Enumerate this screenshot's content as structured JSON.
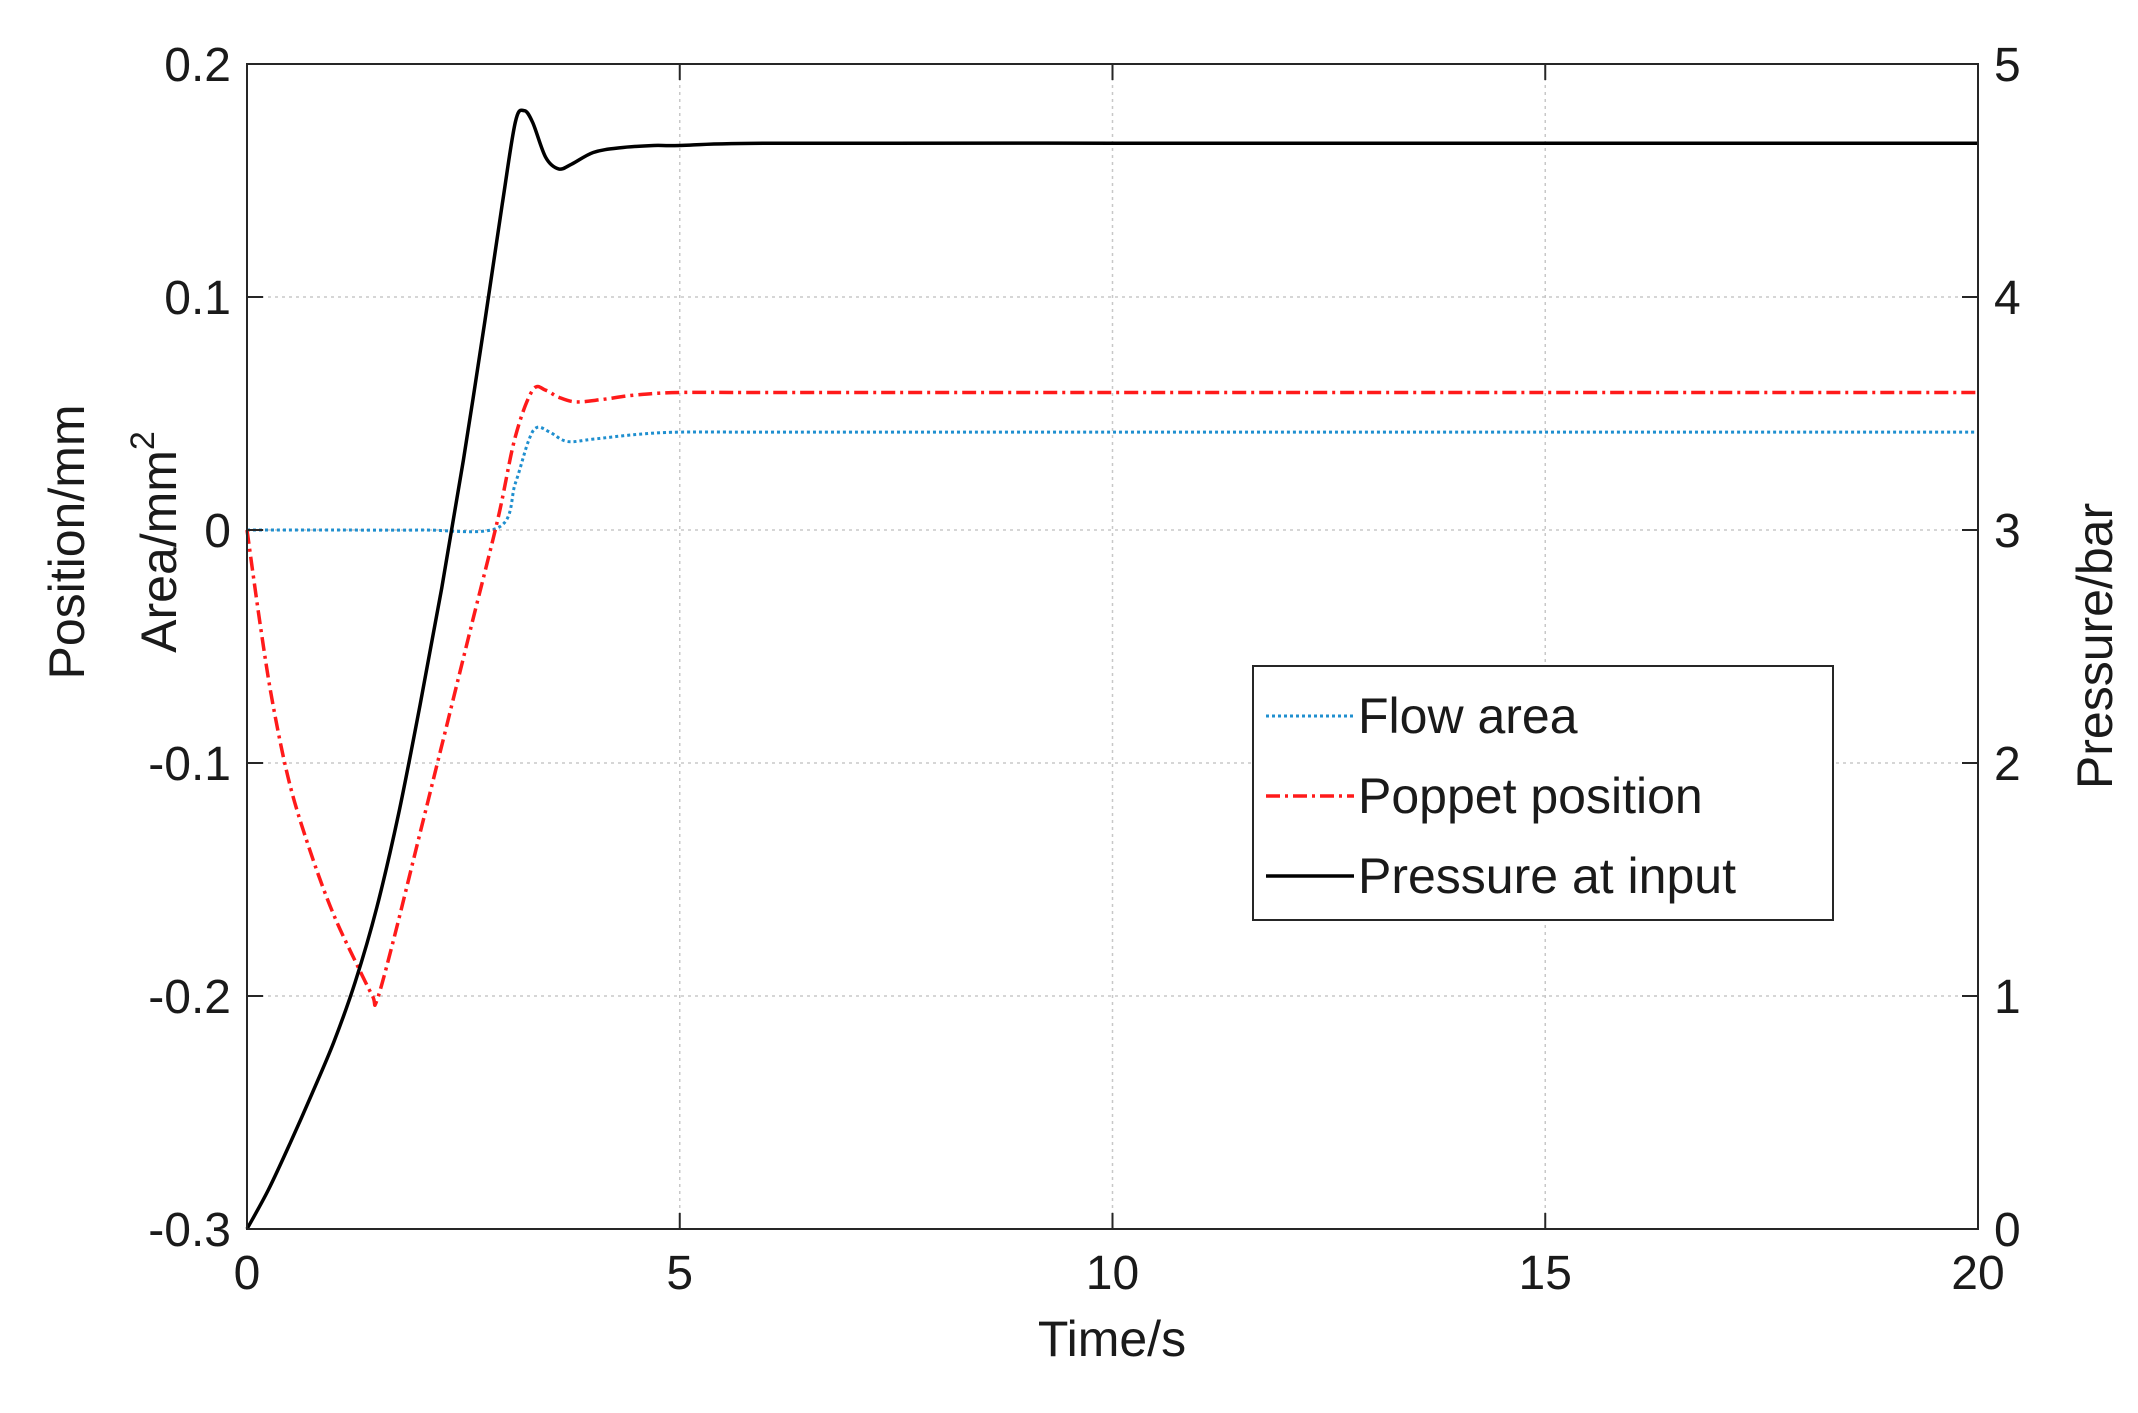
{
  "chart_data": {
    "type": "line",
    "title": "",
    "xlabel": "Time/s",
    "ylabel_left": [
      "Position/mm",
      "Area/mm",
      "2"
    ],
    "ylabel_right": "Pressure/bar",
    "xlim": [
      0,
      20
    ],
    "ylim_left": [
      -0.3,
      0.2
    ],
    "ylim_right": [
      0,
      5
    ],
    "x_ticks": [
      0,
      5,
      10,
      15,
      20
    ],
    "x_tick_labels": [
      "0",
      "5",
      "10",
      "15",
      "20"
    ],
    "y_left_ticks": [
      0.2,
      0.1,
      0,
      -0.1,
      -0.2,
      -0.3
    ],
    "y_left_tick_labels": [
      "0.2",
      "0.1",
      "0",
      "-0.1",
      "-0.2",
      "-0.3"
    ],
    "y_right_ticks": [
      5,
      4,
      3,
      2,
      1,
      0
    ],
    "y_right_tick_labels": [
      "5",
      "4",
      "3",
      "2",
      "1",
      "0"
    ],
    "grid": true,
    "legend_position": "center-right",
    "series": [
      {
        "name": "Flow area",
        "axis": "left",
        "color": "#1f8fcf",
        "style": "dotted",
        "x": [
          0,
          1,
          2,
          2.9,
          3.1,
          3.25,
          3.35,
          3.5,
          3.7,
          4.0,
          4.5,
          5,
          6,
          10,
          15,
          20
        ],
        "y": [
          0,
          0,
          0,
          0.001,
          0.02,
          0.038,
          0.044,
          0.042,
          0.038,
          0.039,
          0.041,
          0.042,
          0.042,
          0.042,
          0.042,
          0.042
        ]
      },
      {
        "name": "Poppet position",
        "axis": "left",
        "color": "#ff1a1a",
        "style": "dashdot",
        "x": [
          0,
          0.15,
          0.3,
          0.5,
          0.75,
          1.0,
          1.25,
          1.45,
          1.5,
          1.7,
          2.0,
          2.3,
          2.6,
          2.9,
          3.1,
          3.3,
          3.45,
          3.6,
          3.8,
          4.1,
          4.5,
          5,
          6,
          10,
          15,
          20
        ],
        "y": [
          0,
          -0.04,
          -0.075,
          -0.11,
          -0.14,
          -0.165,
          -0.185,
          -0.2,
          -0.202,
          -0.175,
          -0.13,
          -0.085,
          -0.04,
          0.005,
          0.04,
          0.06,
          0.06,
          0.057,
          0.055,
          0.056,
          0.058,
          0.059,
          0.059,
          0.059,
          0.059,
          0.059
        ]
      },
      {
        "name": "Pressure at input",
        "axis": "right",
        "color": "#000000",
        "style": "solid",
        "x": [
          0,
          0.25,
          0.5,
          0.75,
          1.0,
          1.25,
          1.5,
          1.75,
          2.0,
          2.25,
          2.5,
          2.75,
          2.95,
          3.1,
          3.2,
          3.3,
          3.45,
          3.6,
          3.75,
          4.0,
          4.3,
          4.7,
          5,
          6,
          10,
          15,
          20
        ],
        "y": [
          0,
          0.17,
          0.37,
          0.58,
          0.8,
          1.06,
          1.38,
          1.78,
          2.25,
          2.75,
          3.3,
          3.9,
          4.4,
          4.75,
          4.8,
          4.75,
          4.6,
          4.55,
          4.57,
          4.62,
          4.64,
          4.65,
          4.65,
          4.66,
          4.66,
          4.66,
          4.66
        ]
      }
    ]
  }
}
